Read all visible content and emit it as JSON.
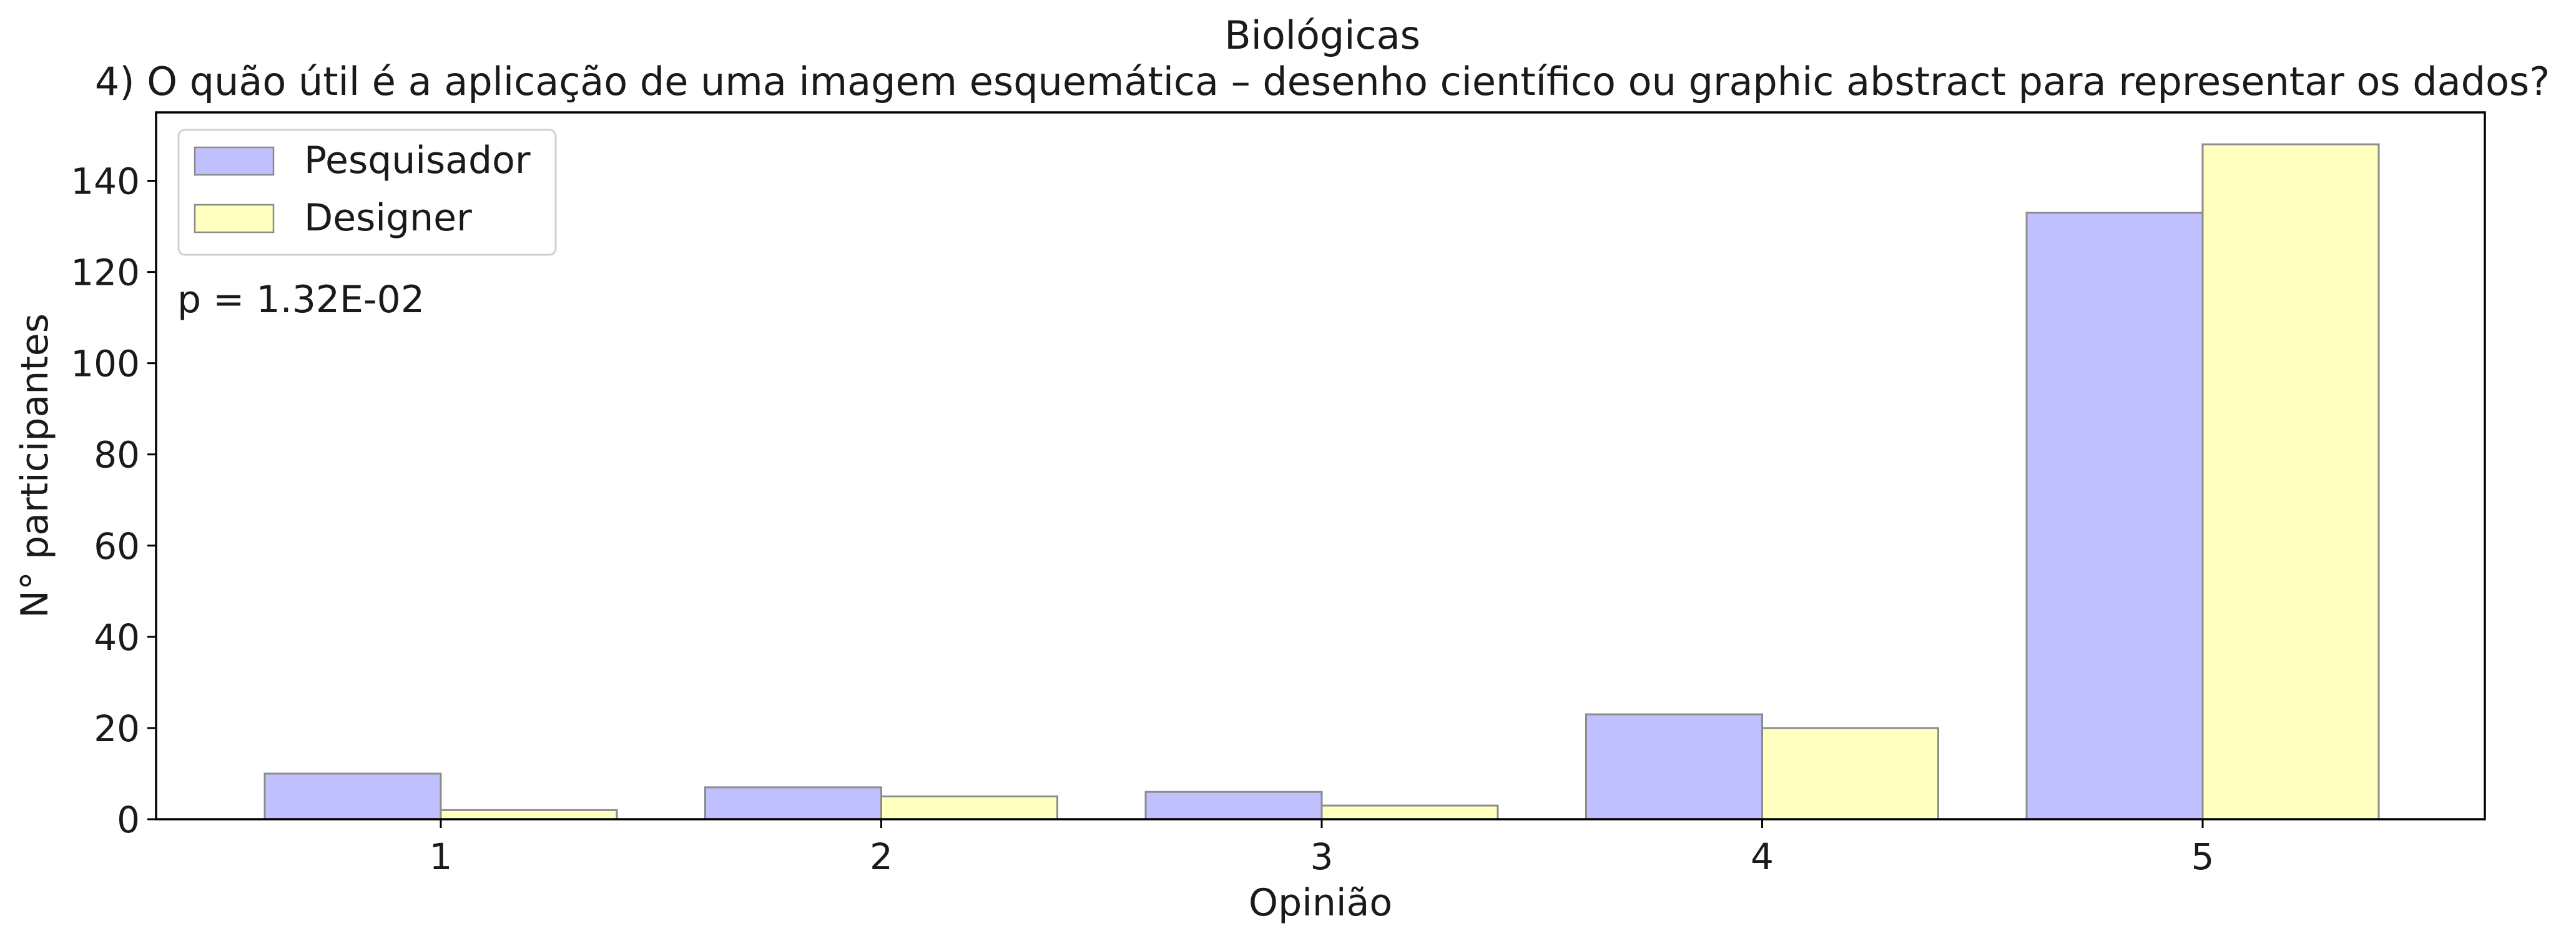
{
  "chart_data": {
    "type": "bar",
    "title": "Biológicas",
    "subtitle": "4) O quão útil é a aplicação de uma imagem esquemática – desenho científico ou graphic abstract para representar os dados?",
    "xlabel": "Opinião",
    "ylabel": "N° participantes",
    "categories": [
      "1",
      "2",
      "3",
      "4",
      "5"
    ],
    "series": [
      {
        "name": "Pesquisador",
        "values": [
          10,
          7,
          6,
          23,
          133
        ],
        "color": "#c0c0ff"
      },
      {
        "name": "Designer",
        "values": [
          2,
          5,
          3,
          20,
          148
        ],
        "color": "#ffffc0"
      }
    ],
    "ylim": [
      0,
      155
    ],
    "yticks": [
      "0",
      "20",
      "40",
      "60",
      "80",
      "100",
      "120",
      "140"
    ],
    "grid": false,
    "legend_position": "top-left",
    "annotation": "p = 1.32E-02"
  }
}
